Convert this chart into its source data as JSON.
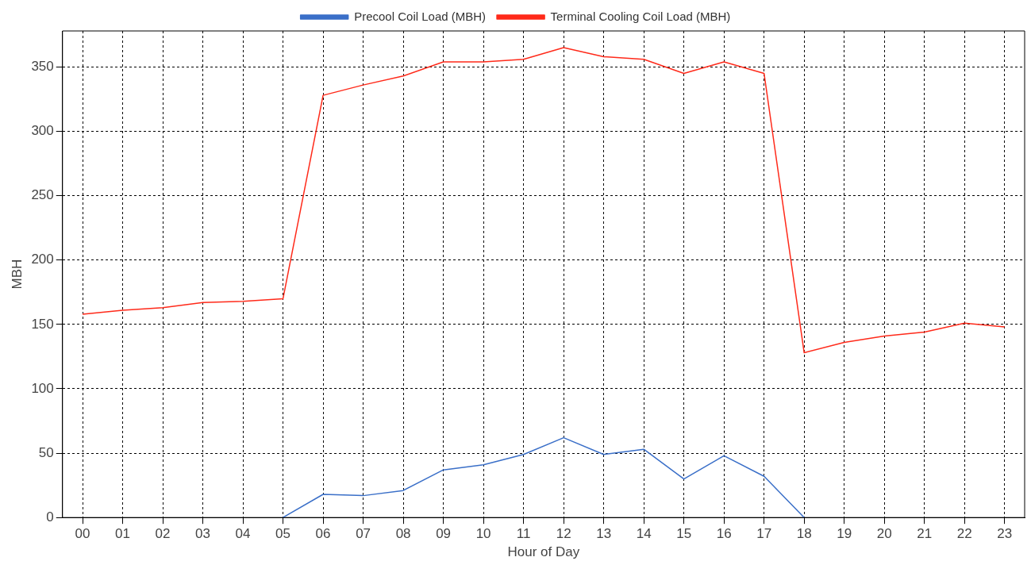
{
  "chart_data": {
    "type": "line",
    "xlabel": "Hour of Day",
    "ylabel": "MBH",
    "categories": [
      "00",
      "01",
      "02",
      "03",
      "04",
      "05",
      "06",
      "07",
      "08",
      "09",
      "10",
      "11",
      "12",
      "13",
      "14",
      "15",
      "16",
      "17",
      "18",
      "19",
      "20",
      "21",
      "22",
      "23"
    ],
    "series": [
      {
        "name": "Precool Coil Load (MBH)",
        "color": "#3a6fc8",
        "values": [
          null,
          null,
          null,
          null,
          null,
          0,
          18,
          17,
          21,
          37,
          41,
          49,
          62,
          49,
          53,
          30,
          48,
          32,
          0,
          null,
          null,
          null,
          null,
          null
        ]
      },
      {
        "name": "Terminal Cooling Coil Load (MBH)",
        "color": "#ff2a1a",
        "values": [
          158,
          161,
          163,
          167,
          168,
          170,
          328,
          336,
          343,
          354,
          354,
          356,
          365,
          358,
          356,
          345,
          354,
          345,
          128,
          136,
          141,
          144,
          151,
          148
        ]
      }
    ],
    "ylim": [
      0,
      378
    ],
    "yticks": [
      0,
      50,
      100,
      150,
      200,
      250,
      300,
      350
    ],
    "grid": true,
    "legend": "top",
    "marker": "none",
    "line_style": "solid"
  }
}
